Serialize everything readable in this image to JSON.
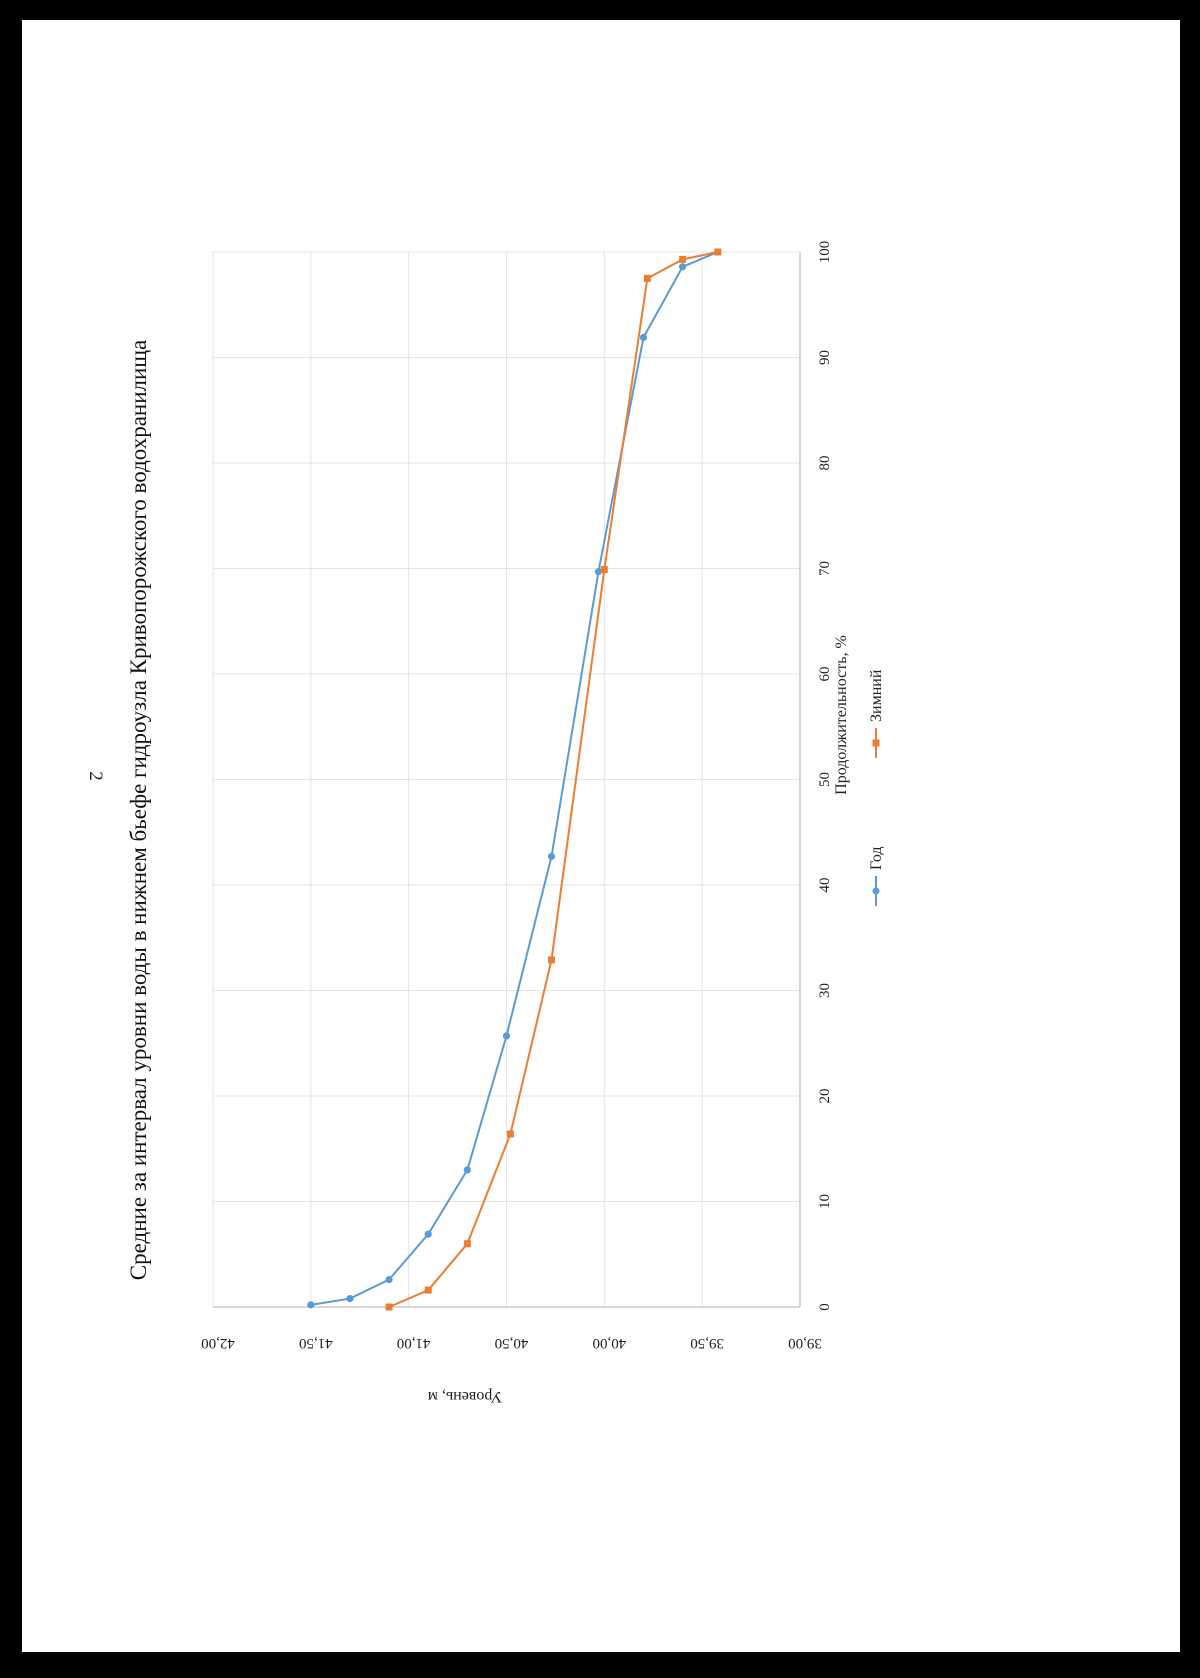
{
  "page": {
    "number": "2"
  },
  "chart_data": {
    "type": "line",
    "title": "Средние за интервал уровни воды в нижнем бьефе гидроузла Кривопорожского водохранилища",
    "xlabel": "Продолжительность, %",
    "ylabel": "Уровень, м",
    "xlim": [
      0,
      100
    ],
    "ylim": [
      39.0,
      42.0
    ],
    "x_ticks": [
      "0",
      "10",
      "20",
      "30",
      "40",
      "50",
      "60",
      "70",
      "80",
      "90",
      "100"
    ],
    "y_ticks": [
      "39,00",
      "39,50",
      "40,00",
      "40,50",
      "41,00",
      "41,50",
      "42,00"
    ],
    "grid": true,
    "legend_position": "bottom",
    "series": [
      {
        "name": "Год",
        "color": "#5b9bd5",
        "marker": "circle",
        "points": [
          [
            0.2,
            41.5
          ],
          [
            0.8,
            41.3
          ],
          [
            2.6,
            41.1
          ],
          [
            6.9,
            40.9
          ],
          [
            13.0,
            40.7
          ],
          [
            25.7,
            40.5
          ],
          [
            42.7,
            40.27
          ],
          [
            69.7,
            40.03
          ],
          [
            91.9,
            39.8
          ],
          [
            98.6,
            39.6
          ],
          [
            100.0,
            39.42
          ]
        ]
      },
      {
        "name": "Зимний",
        "color": "#ed7d31",
        "marker": "square",
        "points": [
          [
            0.0,
            41.1
          ],
          [
            1.6,
            40.9
          ],
          [
            6.0,
            40.7
          ],
          [
            16.4,
            40.48
          ],
          [
            32.9,
            40.27
          ],
          [
            69.9,
            40.0
          ],
          [
            97.5,
            39.78
          ],
          [
            99.3,
            39.6
          ],
          [
            100.0,
            39.42
          ]
        ]
      }
    ]
  }
}
